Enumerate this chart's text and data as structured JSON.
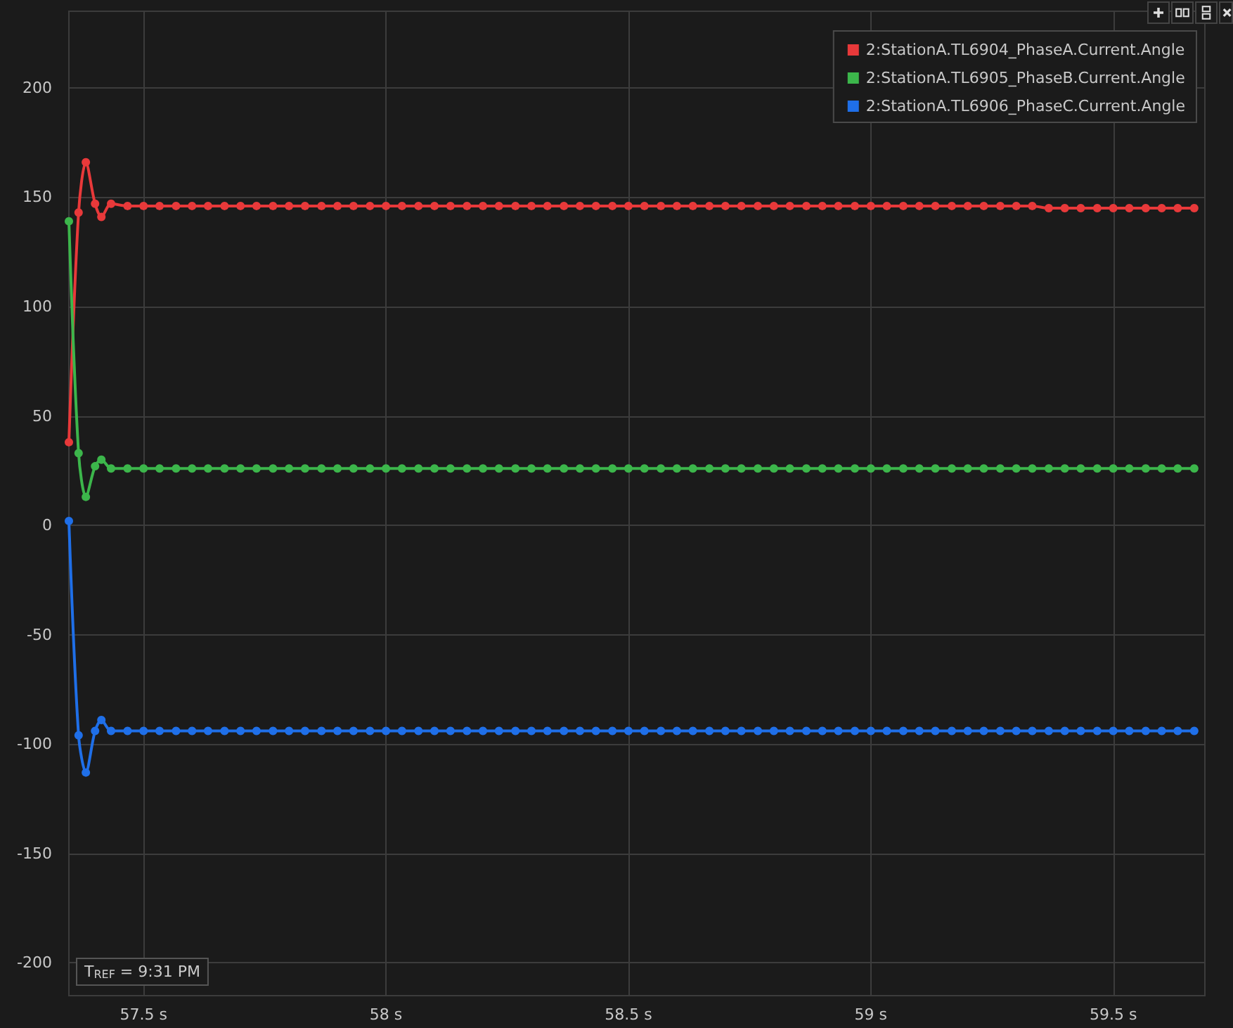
{
  "chart_data": {
    "type": "line",
    "x": [
      57.346,
      57.366,
      57.381,
      57.4,
      57.413,
      57.433,
      57.467,
      57.5,
      57.533,
      57.567,
      57.6,
      57.633,
      57.667,
      57.7,
      57.733,
      57.767,
      57.8,
      57.833,
      57.867,
      57.9,
      57.933,
      57.967,
      58,
      58.033,
      58.067,
      58.1,
      58.133,
      58.167,
      58.2,
      58.233,
      58.267,
      58.3,
      58.333,
      58.367,
      58.4,
      58.433,
      58.467,
      58.5,
      58.533,
      58.567,
      58.6,
      58.633,
      58.667,
      58.7,
      58.733,
      58.767,
      58.8,
      58.833,
      58.867,
      58.9,
      58.933,
      58.967,
      59,
      59.033,
      59.067,
      59.1,
      59.133,
      59.167,
      59.2,
      59.233,
      59.267,
      59.3,
      59.333,
      59.367,
      59.4,
      59.433,
      59.467,
      59.5,
      59.533,
      59.567,
      59.6,
      59.633,
      59.667
    ],
    "series": [
      {
        "name": "2:StationA.TL6904_PhaseA.Current.Angle",
        "color": "#e8393a",
        "values": [
          38,
          143,
          166,
          147,
          141,
          147,
          146,
          146,
          146,
          146,
          146,
          146,
          146,
          146,
          146,
          146,
          146,
          146,
          146,
          146,
          146,
          146,
          146,
          146,
          146,
          146,
          146,
          146,
          146,
          146,
          146,
          146,
          146,
          146,
          146,
          146,
          146,
          146,
          146,
          146,
          146,
          146,
          146,
          146,
          146,
          146,
          146,
          146,
          146,
          146,
          146,
          146,
          146,
          146,
          146,
          146,
          146,
          146,
          146,
          146,
          146,
          146,
          146,
          145,
          145,
          145,
          145,
          145,
          145,
          145,
          145,
          145,
          145
        ]
      },
      {
        "name": "2:StationA.TL6905_PhaseB.Current.Angle",
        "color": "#3cb64b",
        "values": [
          139,
          33,
          13,
          27,
          30,
          26,
          26,
          26,
          26,
          26,
          26,
          26,
          26,
          26,
          26,
          26,
          26,
          26,
          26,
          26,
          26,
          26,
          26,
          26,
          26,
          26,
          26,
          26,
          26,
          26,
          26,
          26,
          26,
          26,
          26,
          26,
          26,
          26,
          26,
          26,
          26,
          26,
          26,
          26,
          26,
          26,
          26,
          26,
          26,
          26,
          26,
          26,
          26,
          26,
          26,
          26,
          26,
          26,
          26,
          26,
          26,
          26,
          26,
          26,
          26,
          26,
          26,
          26,
          26,
          26,
          26,
          26,
          26
        ]
      },
      {
        "name": "2:StationA.TL6906_PhaseC.Current.Angle",
        "color": "#1f6fe8",
        "values": [
          2,
          -96,
          -113,
          -94,
          -89,
          -94,
          -94,
          -94,
          -94,
          -94,
          -94,
          -94,
          -94,
          -94,
          -94,
          -94,
          -94,
          -94,
          -94,
          -94,
          -94,
          -94,
          -94,
          -94,
          -94,
          -94,
          -94,
          -94,
          -94,
          -94,
          -94,
          -94,
          -94,
          -94,
          -94,
          -94,
          -94,
          -94,
          -94,
          -94,
          -94,
          -94,
          -94,
          -94,
          -94,
          -94,
          -94,
          -94,
          -94,
          -94,
          -94,
          -94,
          -94,
          -94,
          -94,
          -94,
          -94,
          -94,
          -94,
          -94,
          -94,
          -94,
          -94,
          -94,
          -94,
          -94,
          -94,
          -94,
          -94,
          -94,
          -94,
          -94,
          -94
        ]
      }
    ],
    "xlim": [
      57.346,
      59.689
    ],
    "xticks": [
      {
        "value": 57.5,
        "label": "57.5 s"
      },
      {
        "value": 58,
        "label": "58 s"
      },
      {
        "value": 58.5,
        "label": "58.5 s"
      },
      {
        "value": 59,
        "label": "59 s"
      },
      {
        "value": 59.5,
        "label": "59.5 s"
      }
    ],
    "ylim": [
      -215,
      235
    ],
    "yticks": [
      -200,
      -150,
      -100,
      -50,
      0,
      50,
      100,
      150,
      200
    ],
    "annotations": [
      "T$_{REF}$ = 9:31 PM"
    ],
    "grid": true,
    "legend": "top right",
    "marker": "circle",
    "line_style": "solid"
  }
}
